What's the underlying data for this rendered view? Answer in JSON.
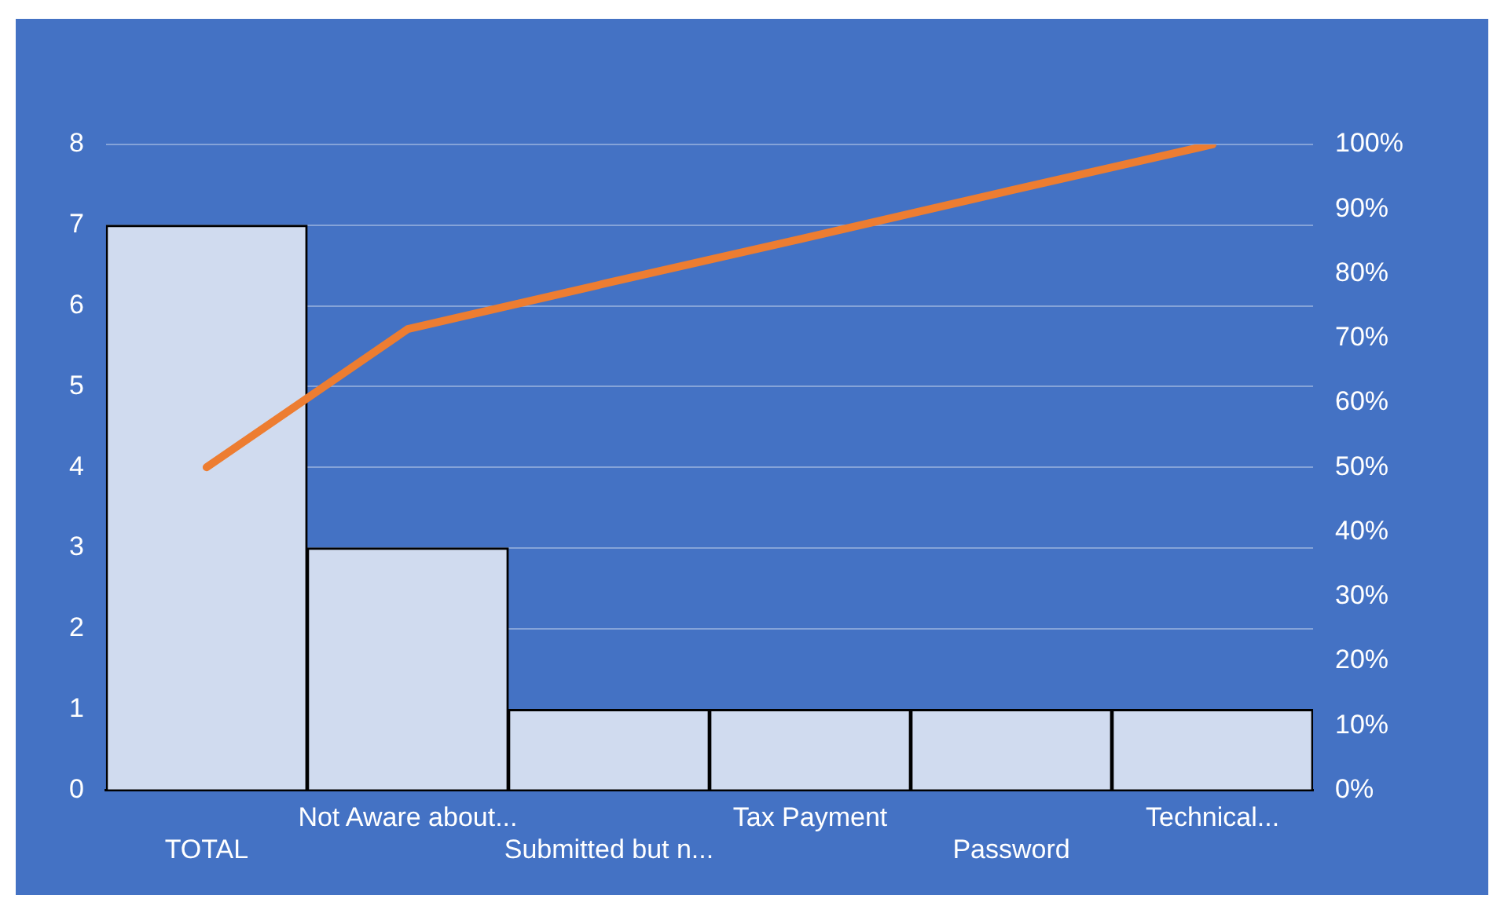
{
  "chart_data": {
    "type": "bar",
    "categories": [
      "TOTAL",
      "Not Aware about...",
      "Submitted but n...",
      "Tax Payment",
      "Password",
      "Technical..."
    ],
    "series": [
      {
        "color": "#d0dbef",
        "values": [
          7,
          3,
          1,
          1,
          1,
          1
        ]
      },
      {
        "type": "line",
        "axis": "y2",
        "color": "#ed7d31",
        "values": [
          50,
          71.4,
          78.6,
          85.7,
          92.9,
          100
        ]
      }
    ],
    "ylim": [
      0,
      8
    ],
    "yticks": [
      0,
      1,
      2,
      3,
      4,
      5,
      6,
      7,
      8
    ],
    "y2lim": [
      0,
      100
    ],
    "y2ticks": [
      {
        "value": 0,
        "label": "0%"
      },
      {
        "value": 10,
        "label": "10%"
      },
      {
        "value": 20,
        "label": "20%"
      },
      {
        "value": 30,
        "label": "30%"
      },
      {
        "value": 40,
        "label": "40%"
      },
      {
        "value": 50,
        "label": "50%"
      },
      {
        "value": 60,
        "label": "60%"
      },
      {
        "value": 70,
        "label": "70%"
      },
      {
        "value": 80,
        "label": "80%"
      },
      {
        "value": 90,
        "label": "90%"
      },
      {
        "value": 100,
        "label": "100%"
      }
    ],
    "grid": "y",
    "legend": false,
    "marker": "none",
    "line_style": "solid"
  }
}
